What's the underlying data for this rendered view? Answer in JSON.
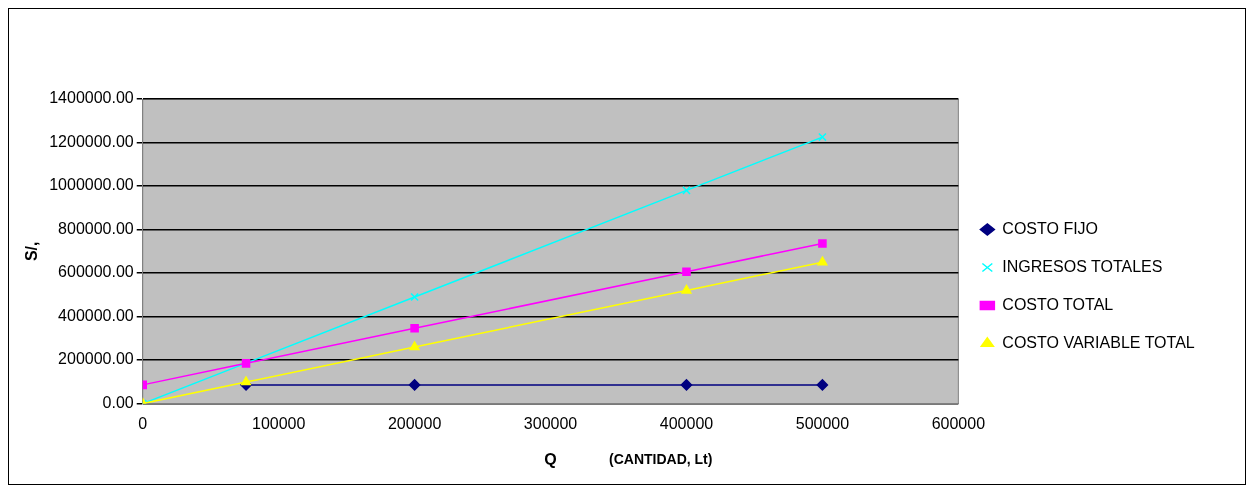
{
  "chart_data": {
    "type": "line",
    "xlabel": "Q",
    "ylabel": "S/,",
    "annotations": [
      "(CANTIDAD, Lt)"
    ],
    "xlim": [
      0,
      600000
    ],
    "xticks": [
      0,
      100000,
      200000,
      300000,
      400000,
      500000,
      600000
    ],
    "ylim": [
      0,
      1400000
    ],
    "yticks": [
      {
        "value": 0,
        "label": "0.00"
      },
      {
        "value": 200000,
        "label": "200000.00"
      },
      {
        "value": 400000,
        "label": "400000.00"
      },
      {
        "value": 600000,
        "label": "600000.00"
      },
      {
        "value": 800000,
        "label": "800000.00"
      },
      {
        "value": 1000000,
        "label": "1000000.00"
      },
      {
        "value": 1200000,
        "label": "1200000.00"
      },
      {
        "value": 1400000,
        "label": "1400000.00"
      }
    ],
    "grid": "y",
    "legend": "right",
    "line_style": "solid",
    "x": [
      0,
      76000,
      200000,
      400000,
      500000
    ],
    "series": [
      {
        "name": "COSTO FIJO",
        "color": "#000080",
        "marker": "diamond",
        "values": [
          null,
          86000,
          86000,
          86000,
          86000
        ]
      },
      {
        "name": "INGRESOS TOTALES",
        "color": "#00ffff",
        "marker": "cross",
        "values": [
          0,
          186000,
          490000,
          980000,
          1225000
        ]
      },
      {
        "name": "COSTO TOTAL",
        "color": "#ff00ff",
        "marker": "square",
        "values": [
          86000,
          185000,
          346000,
          606000,
          736000
        ]
      },
      {
        "name": "COSTO VARIABLE TOTAL",
        "color": "#ffff00",
        "marker": "triangle",
        "values": [
          0,
          99000,
          260000,
          520000,
          650000
        ]
      }
    ]
  }
}
